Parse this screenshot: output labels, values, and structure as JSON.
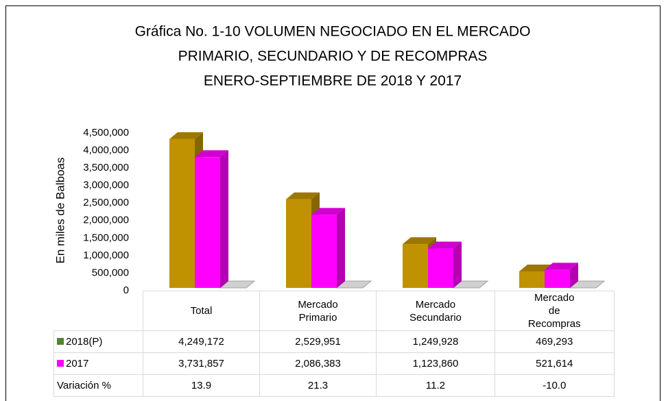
{
  "chart_data": {
    "type": "bar3d",
    "title": [
      "Gráfica No. 1-10  VOLUMEN NEGOCIADO EN  EL MERCADO",
      "PRIMARIO, SECUNDARIO Y DE RECOMPRAS",
      "ENERO-SEPTIEMBRE DE 2018 Y 2017"
    ],
    "y_label": "En miles de Balboas",
    "categories": [
      "Total",
      "Mercado Primario",
      "Mercado Secundario",
      "Mercado de Recompras"
    ],
    "series": [
      {
        "name": "2018(P)",
        "color": "#c09100",
        "key_color": "#548235",
        "values": [
          4249172,
          2529951,
          1249928,
          469293
        ],
        "value_labels": [
          "4,249,172",
          "2,529,951",
          "1,249,928",
          "469,293"
        ]
      },
      {
        "name": "2017",
        "color": "#ff00ff",
        "key_color": "#ff00ff",
        "values": [
          3731857,
          2086383,
          1123860,
          521614
        ],
        "value_labels": [
          "3,731,857",
          "2,086,383",
          "1,123,860",
          "521,614"
        ]
      }
    ],
    "table_rows": [
      {
        "name": "Variación %",
        "values": [
          13.9,
          21.3,
          11.2,
          -10.0
        ],
        "value_labels": [
          "13.9",
          "21.3",
          "11.2",
          "-10.0"
        ]
      }
    ],
    "ylim": [
      0,
      4500000
    ],
    "yticks": [
      0,
      {
        "value": 500000,
        "label": "500,000"
      },
      {
        "value": 1000000,
        "label": "1,000,000"
      },
      {
        "value": 1500000,
        "label": "1,500,000"
      },
      {
        "value": 2000000,
        "label": "2,000,000"
      },
      {
        "value": 2500000,
        "label": "2,500,000"
      },
      {
        "value": 3000000,
        "label": "3,000,000"
      },
      {
        "value": 3500000,
        "label": "3,500,000"
      },
      {
        "value": 4000000,
        "label": "4,000,000"
      },
      {
        "value": 4500000,
        "label": "4,500,000"
      }
    ],
    "grid": false
  }
}
